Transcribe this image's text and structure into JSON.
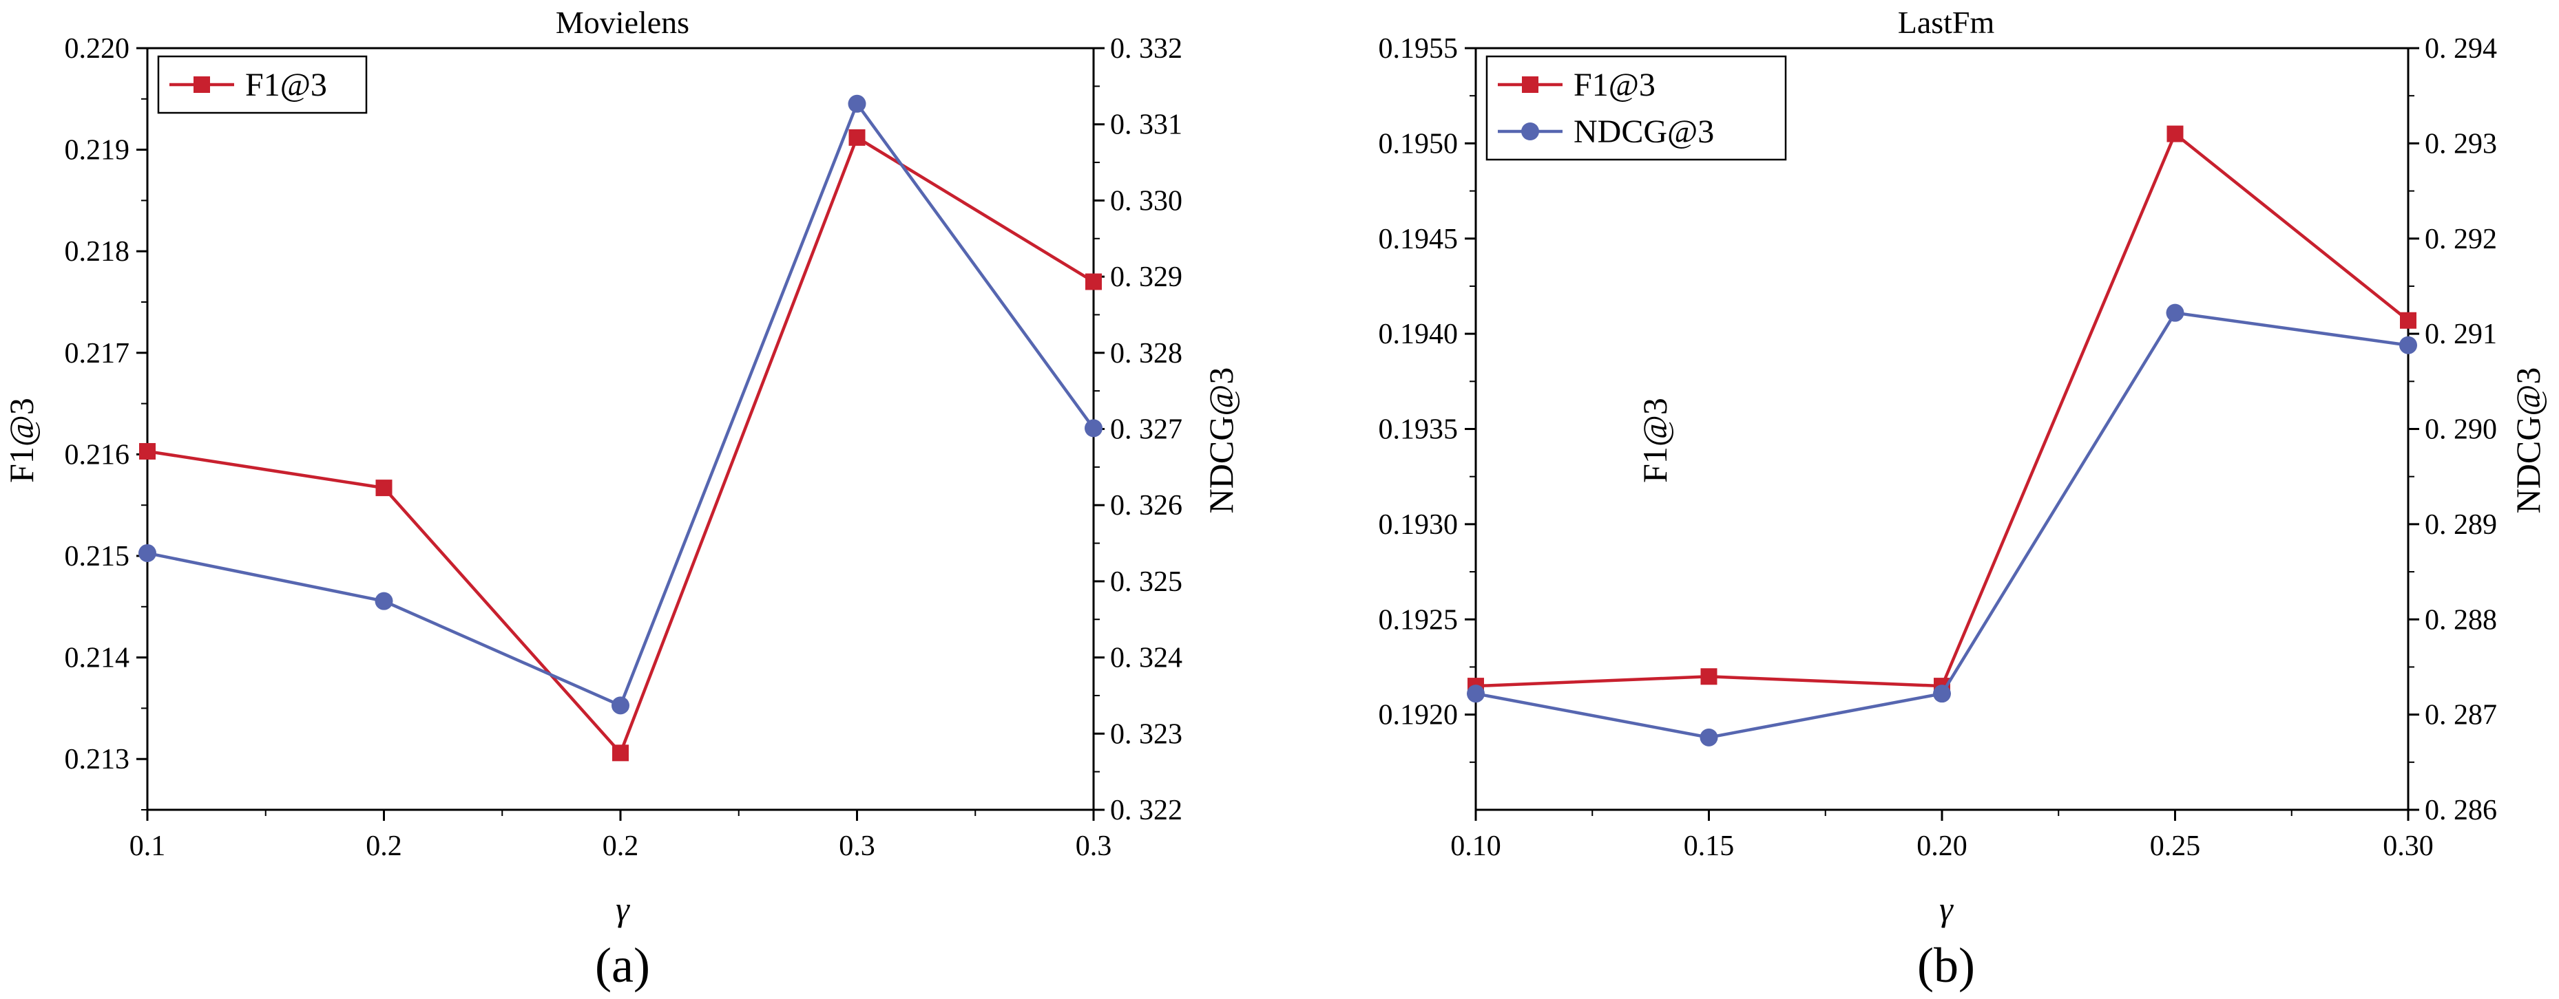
{
  "colors": {
    "f1": "#c8202e",
    "ndcg": "#5666b0",
    "axis": "#000000"
  },
  "chart_data": [
    {
      "type": "line",
      "title": "Movielens",
      "caption": "(a)",
      "xlabel": "γ",
      "ylabel": "F1@3",
      "y2label": "NDCG@3",
      "x_positions": [
        0,
        1,
        2,
        3,
        4
      ],
      "x_tick_labels": [
        "0.1",
        "0.2",
        "0.2",
        "0.3",
        "0.3"
      ],
      "xlim": [
        0,
        4
      ],
      "ylim": [
        0.2125,
        0.22
      ],
      "y_ticks": [
        "0.213",
        "0.214",
        "0.215",
        "0.216",
        "0.217",
        "0.218",
        "0.219",
        "0.220"
      ],
      "y2lim": [
        0.322,
        0.332
      ],
      "y2_ticks": [
        "0. 322",
        "0. 323",
        "0. 324",
        "0. 325",
        "0. 326",
        "0. 327",
        "0. 328",
        "0. 329",
        "0. 330",
        "0. 331",
        "0. 332"
      ],
      "legend": {
        "position": "top-left",
        "entries": [
          "F1@3"
        ]
      },
      "series": [
        {
          "name": "F1@3",
          "axis": "left",
          "color_key": "f1",
          "marker": "square",
          "values": [
            0.21603,
            0.21567,
            0.21306,
            0.21912,
            0.2177
          ]
        },
        {
          "axis": "right",
          "color_key": "ndcg",
          "marker": "circle",
          "values": [
            0.32537,
            0.32474,
            0.32337,
            0.33127,
            0.32701
          ]
        }
      ]
    },
    {
      "type": "line",
      "title": "LastFm",
      "caption": "(b)",
      "xlabel": "γ",
      "ylabel": "F1@3",
      "y2label": "NDCG@3",
      "x_positions": [
        0.1,
        0.15,
        0.2,
        0.25,
        0.3
      ],
      "x_tick_labels": [
        "0.10",
        "0.15",
        "0.20",
        "0.25",
        "0.30"
      ],
      "xlim": [
        0.1,
        0.3
      ],
      "ylim": [
        0.1915,
        0.1955
      ],
      "y_ticks": [
        "0.1920",
        "0.1925",
        "0.1930",
        "0.1935",
        "0.1940",
        "0.1945",
        "0.1950",
        "0.1955"
      ],
      "y2lim": [
        0.286,
        0.294
      ],
      "y2_ticks": [
        "0. 286",
        "0. 287",
        "0. 288",
        "0. 289",
        "0. 290",
        "0. 291",
        "0. 292",
        "0. 293",
        "0. 294"
      ],
      "legend": {
        "position": "top-left",
        "entries": [
          "F1@3",
          "NDCG@3"
        ]
      },
      "series": [
        {
          "name": "F1@3",
          "axis": "left",
          "color_key": "f1",
          "marker": "square",
          "values": [
            0.19215,
            0.1922,
            0.19215,
            0.19505,
            0.19407
          ]
        },
        {
          "name": "NDCG@3",
          "axis": "right",
          "color_key": "ndcg",
          "marker": "circle",
          "values": [
            0.28722,
            0.28676,
            0.28722,
            0.29122,
            0.29088
          ]
        }
      ]
    }
  ]
}
